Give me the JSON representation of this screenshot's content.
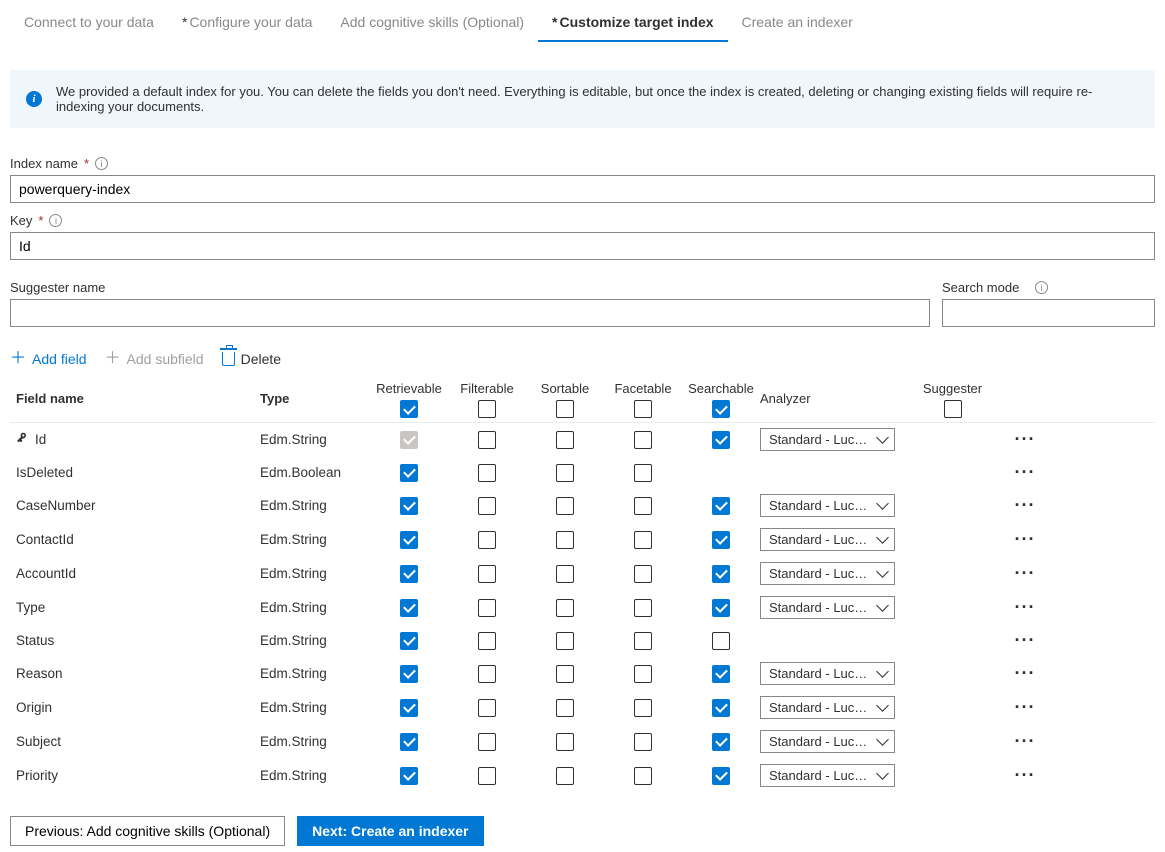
{
  "tabs": [
    {
      "label": "Connect to your data",
      "asterisk": false,
      "active": false
    },
    {
      "label": "Configure your data",
      "asterisk": true,
      "active": false
    },
    {
      "label": "Add cognitive skills (Optional)",
      "asterisk": false,
      "active": false
    },
    {
      "label": "Customize target index",
      "asterisk": true,
      "active": true
    },
    {
      "label": "Create an indexer",
      "asterisk": false,
      "active": false
    }
  ],
  "info_text": "We provided a default index for you. You can delete the fields you don't need. Everything is editable, but once the index is created, deleting or changing existing fields will require re-indexing your documents.",
  "form": {
    "index_name_label": "Index name",
    "index_name_value": "powerquery-index",
    "key_label": "Key",
    "key_value": "Id",
    "suggester_label": "Suggester name",
    "suggester_value": "",
    "search_mode_label": "Search mode",
    "search_mode_value": ""
  },
  "toolbar": {
    "add_field": "Add field",
    "add_subfield": "Add subfield",
    "delete": "Delete"
  },
  "headers": {
    "field_name": "Field name",
    "type": "Type",
    "retrievable": "Retrievable",
    "filterable": "Filterable",
    "sortable": "Sortable",
    "facetable": "Facetable",
    "searchable": "Searchable",
    "analyzer": "Analyzer",
    "suggester": "Suggester"
  },
  "header_checks": {
    "retrievable": true,
    "filterable": false,
    "sortable": false,
    "facetable": false,
    "searchable": true,
    "suggester": false
  },
  "analyzer_default": "Standard - Luce...",
  "rows": [
    {
      "name": "Id",
      "type": "Edm.String",
      "key": true,
      "retrievable": "disabled",
      "filterable": false,
      "sortable": false,
      "facetable": false,
      "searchable": true,
      "analyzer": true
    },
    {
      "name": "IsDeleted",
      "type": "Edm.Boolean",
      "retrievable": true,
      "filterable": false,
      "sortable": false,
      "facetable": false,
      "searchable": null,
      "analyzer": false
    },
    {
      "name": "CaseNumber",
      "type": "Edm.String",
      "retrievable": true,
      "filterable": false,
      "sortable": false,
      "facetable": false,
      "searchable": true,
      "analyzer": true
    },
    {
      "name": "ContactId",
      "type": "Edm.String",
      "retrievable": true,
      "filterable": false,
      "sortable": false,
      "facetable": false,
      "searchable": true,
      "analyzer": true
    },
    {
      "name": "AccountId",
      "type": "Edm.String",
      "retrievable": true,
      "filterable": false,
      "sortable": false,
      "facetable": false,
      "searchable": true,
      "analyzer": true
    },
    {
      "name": "Type",
      "type": "Edm.String",
      "retrievable": true,
      "filterable": false,
      "sortable": false,
      "facetable": false,
      "searchable": true,
      "analyzer": true
    },
    {
      "name": "Status",
      "type": "Edm.String",
      "retrievable": true,
      "filterable": false,
      "sortable": false,
      "facetable": false,
      "searchable": false,
      "analyzer": false
    },
    {
      "name": "Reason",
      "type": "Edm.String",
      "retrievable": true,
      "filterable": false,
      "sortable": false,
      "facetable": false,
      "searchable": true,
      "analyzer": true
    },
    {
      "name": "Origin",
      "type": "Edm.String",
      "retrievable": true,
      "filterable": false,
      "sortable": false,
      "facetable": false,
      "searchable": true,
      "analyzer": true
    },
    {
      "name": "Subject",
      "type": "Edm.String",
      "retrievable": true,
      "filterable": false,
      "sortable": false,
      "facetable": false,
      "searchable": true,
      "analyzer": true
    },
    {
      "name": "Priority",
      "type": "Edm.String",
      "retrievable": true,
      "filterable": false,
      "sortable": false,
      "facetable": false,
      "searchable": true,
      "analyzer": true
    }
  ],
  "footer": {
    "prev": "Previous: Add cognitive skills (Optional)",
    "next": "Next: Create an indexer"
  }
}
